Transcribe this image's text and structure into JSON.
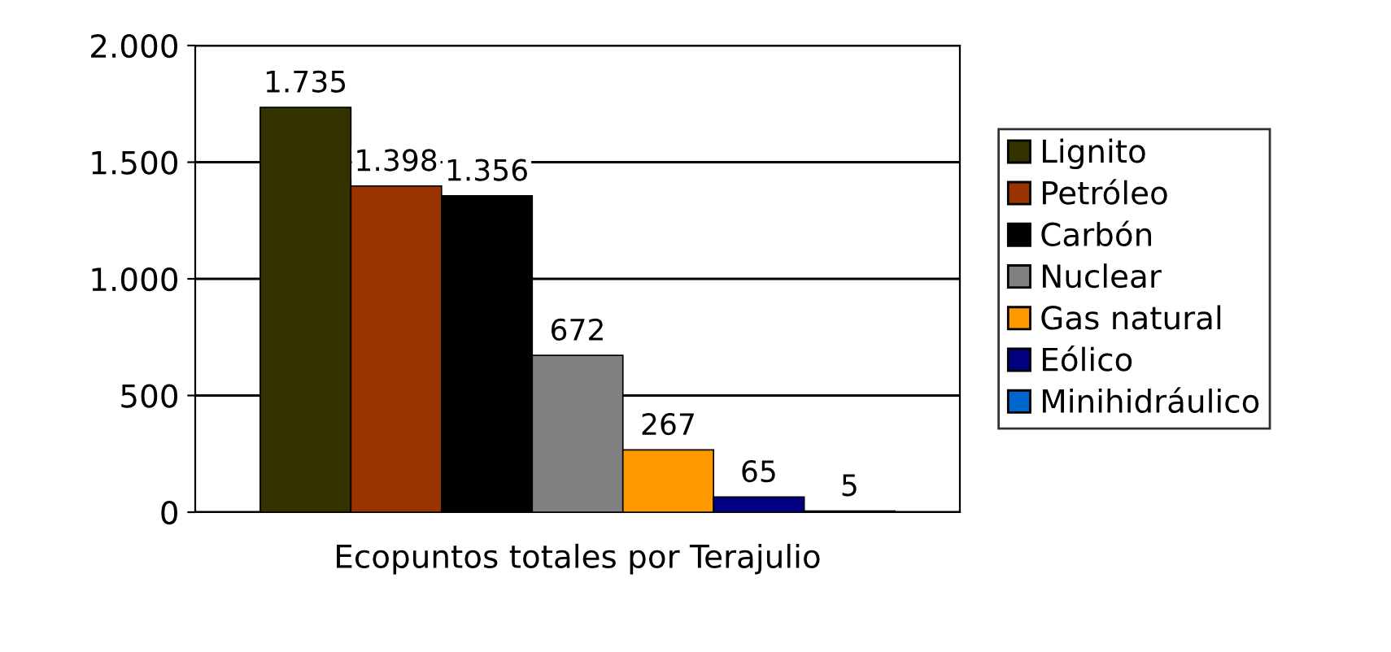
{
  "chart_data": {
    "type": "bar",
    "categories": [
      "Ecopuntos totales por Terajulio"
    ],
    "series": [
      {
        "name": "Lignito",
        "color": "#333300",
        "values": [
          1735
        ],
        "value_labels": [
          "1.735"
        ]
      },
      {
        "name": "Petróleo",
        "color": "#993300",
        "values": [
          1398
        ],
        "value_labels": [
          "1.398"
        ]
      },
      {
        "name": "Carbón",
        "color": "#000000",
        "values": [
          1356
        ],
        "value_labels": [
          "1.356"
        ]
      },
      {
        "name": "Nuclear",
        "color": "#808080",
        "values": [
          672
        ],
        "value_labels": [
          "672"
        ]
      },
      {
        "name": "Gas natural",
        "color": "#ff9900",
        "values": [
          267
        ],
        "value_labels": [
          "267"
        ]
      },
      {
        "name": "Eólico",
        "color": "#000080",
        "values": [
          65
        ],
        "value_labels": [
          "65"
        ]
      },
      {
        "name": "Minihidráulico",
        "color": "#0066cc",
        "values": [
          5
        ],
        "value_labels": [
          "5"
        ]
      }
    ],
    "ylim": [
      0,
      2000
    ],
    "yticks": [
      0,
      500,
      {
        "value": 1000,
        "label": "1.000"
      },
      {
        "value": 1500,
        "label": "1.500"
      },
      {
        "value": 2000,
        "label": "2.000"
      }
    ],
    "grid": "y",
    "legend": "right"
  }
}
